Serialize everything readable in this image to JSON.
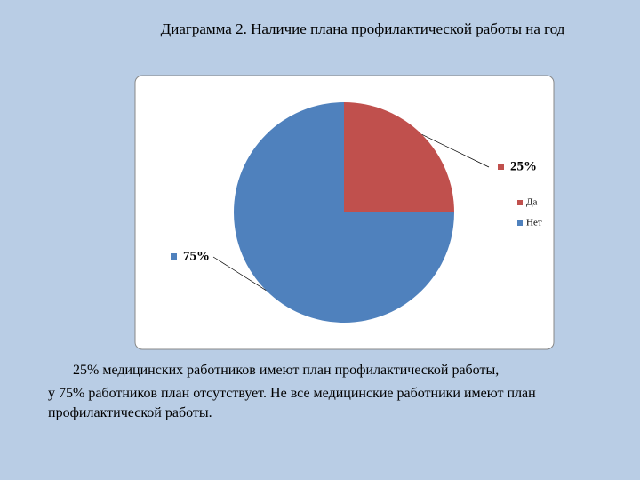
{
  "chart_data": {
    "type": "pie",
    "title": "Диаграмма 2. Наличие плана профилактической работы на год",
    "categories": [
      "Да",
      "Нет"
    ],
    "values": [
      25,
      75
    ],
    "value_labels": [
      "25%",
      "75%"
    ],
    "colors": [
      "#c0504d",
      "#4f81bd"
    ],
    "legend": "right"
  },
  "caption": [
    "25% медицинских работников имеют план профилактической работы,",
    "у 75% работников план отсутствует. Не все медицинские работники имеют план",
    "профилактической работы."
  ]
}
